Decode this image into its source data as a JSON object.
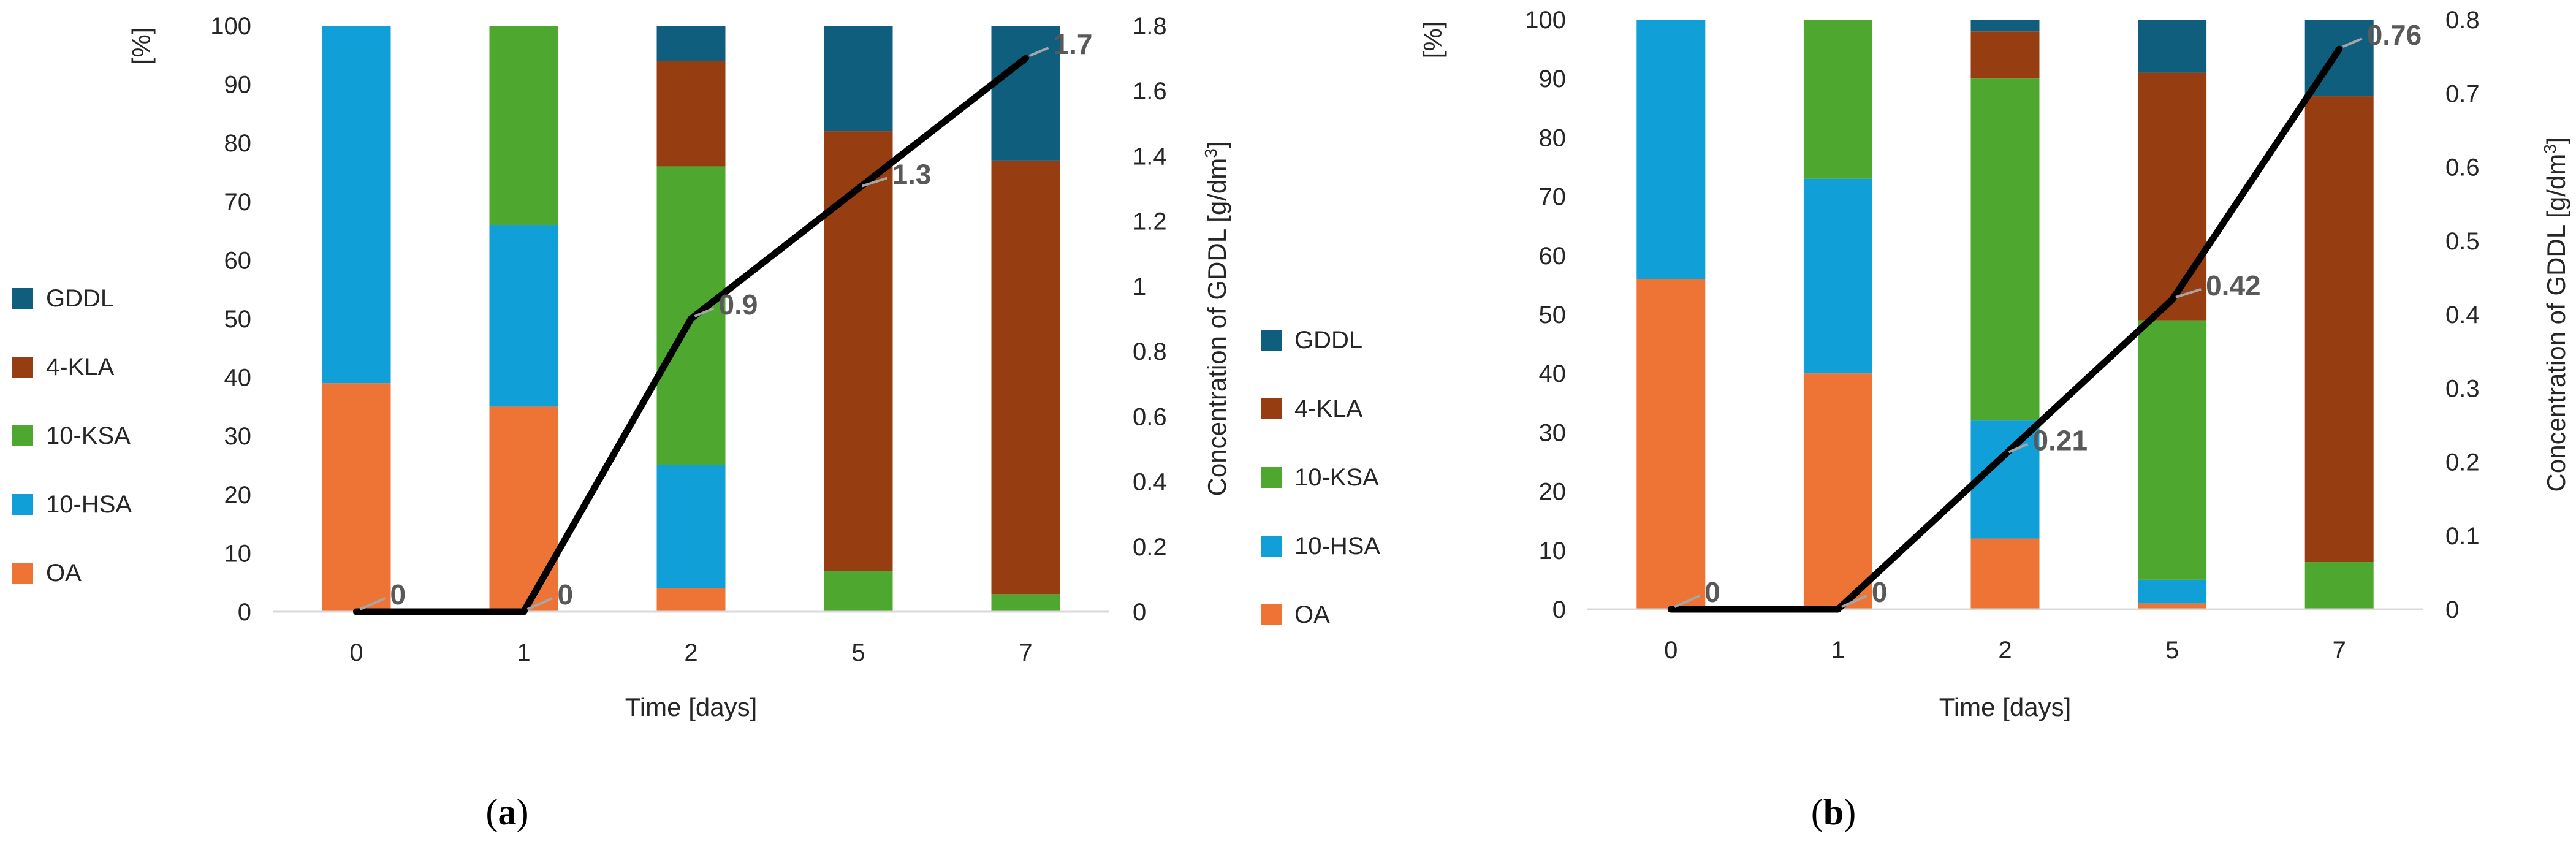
{
  "figure": {
    "colors": {
      "OA": "#ED7434",
      "10-HSA": "#119FD7",
      "10-KSA": "#4EA72E",
      "4-KLA": "#963E12",
      "GDDL": "#0F5E7E",
      "line": "#000000",
      "grid": "#D9D9D9",
      "leader": "#A6A6A6"
    }
  },
  "chart_data": [
    {
      "type": "bar",
      "stacked": true,
      "panel_label": "a",
      "categories": [
        "0",
        "1",
        "2",
        "5",
        "7"
      ],
      "series": [
        {
          "name": "OA",
          "values": [
            39,
            35,
            4,
            0,
            0
          ]
        },
        {
          "name": "10-HSA",
          "values": [
            61,
            31,
            21,
            0,
            0
          ]
        },
        {
          "name": "10-KSA",
          "values": [
            0,
            34,
            51,
            7,
            3
          ]
        },
        {
          "name": "4-KLA",
          "values": [
            0,
            0,
            18,
            75,
            74
          ]
        },
        {
          "name": "GDDL",
          "values": [
            0,
            0,
            6,
            18,
            23
          ]
        }
      ],
      "line": {
        "name": "Concentration of GDDL",
        "axis": "right",
        "values": [
          0,
          0,
          0.9,
          1.3,
          1.7
        ],
        "labels": [
          "0",
          "0",
          "0.9",
          "1.3",
          "1.7"
        ]
      },
      "xlabel": "Time [days]",
      "ylabel": "[%]",
      "y2label": "Concentration of GDDL [g/dm",
      "y2label_sup": "3",
      "y2label_end": "]",
      "ylim": [
        0,
        100
      ],
      "yticks": [
        "0",
        "10",
        "20",
        "30",
        "40",
        "50",
        "60",
        "70",
        "80",
        "90",
        "100"
      ],
      "y2lim": [
        0,
        1.8
      ],
      "y2ticks": [
        "0",
        "0.2",
        "0.4",
        "0.6",
        "0.8",
        "1",
        "1.2",
        "1.4",
        "1.6",
        "1.8"
      ],
      "legend_order": [
        "GDDL",
        "4-KLA",
        "10-KSA",
        "10-HSA",
        "OA"
      ],
      "legend_position": "left",
      "grid": false
    },
    {
      "type": "bar",
      "stacked": true,
      "panel_label": "b",
      "categories": [
        "0",
        "1",
        "2",
        "5",
        "7"
      ],
      "series": [
        {
          "name": "OA",
          "values": [
            56,
            40,
            12,
            1,
            0
          ]
        },
        {
          "name": "10-HSA",
          "values": [
            44,
            33,
            20,
            4,
            0
          ]
        },
        {
          "name": "10-KSA",
          "values": [
            0,
            27,
            58,
            44,
            8
          ]
        },
        {
          "name": "4-KLA",
          "values": [
            0,
            0,
            8,
            42,
            79
          ]
        },
        {
          "name": "GDDL",
          "values": [
            0,
            0,
            2,
            9,
            13
          ]
        }
      ],
      "line": {
        "name": "Concentration of GDDL",
        "axis": "right",
        "values": [
          0,
          0,
          0.21,
          0.42,
          0.76
        ],
        "labels": [
          "0",
          "0",
          "0.21",
          "0.42",
          "0.76"
        ]
      },
      "xlabel": "Time [days]",
      "ylabel": "[%]",
      "y2label": "Concentration of GDDL [g/dm",
      "y2label_sup": "3",
      "y2label_end": "]",
      "ylim": [
        0,
        100
      ],
      "yticks": [
        "0",
        "10",
        "20",
        "30",
        "40",
        "50",
        "60",
        "70",
        "80",
        "90",
        "100"
      ],
      "y2lim": [
        0,
        0.8
      ],
      "y2ticks": [
        "0",
        "0.1",
        "0.2",
        "0.3",
        "0.4",
        "0.5",
        "0.6",
        "0.7",
        "0.8"
      ],
      "legend_order": [
        "GDDL",
        "4-KLA",
        "10-KSA",
        "10-HSA",
        "OA"
      ],
      "legend_position": "left",
      "grid": false
    }
  ]
}
